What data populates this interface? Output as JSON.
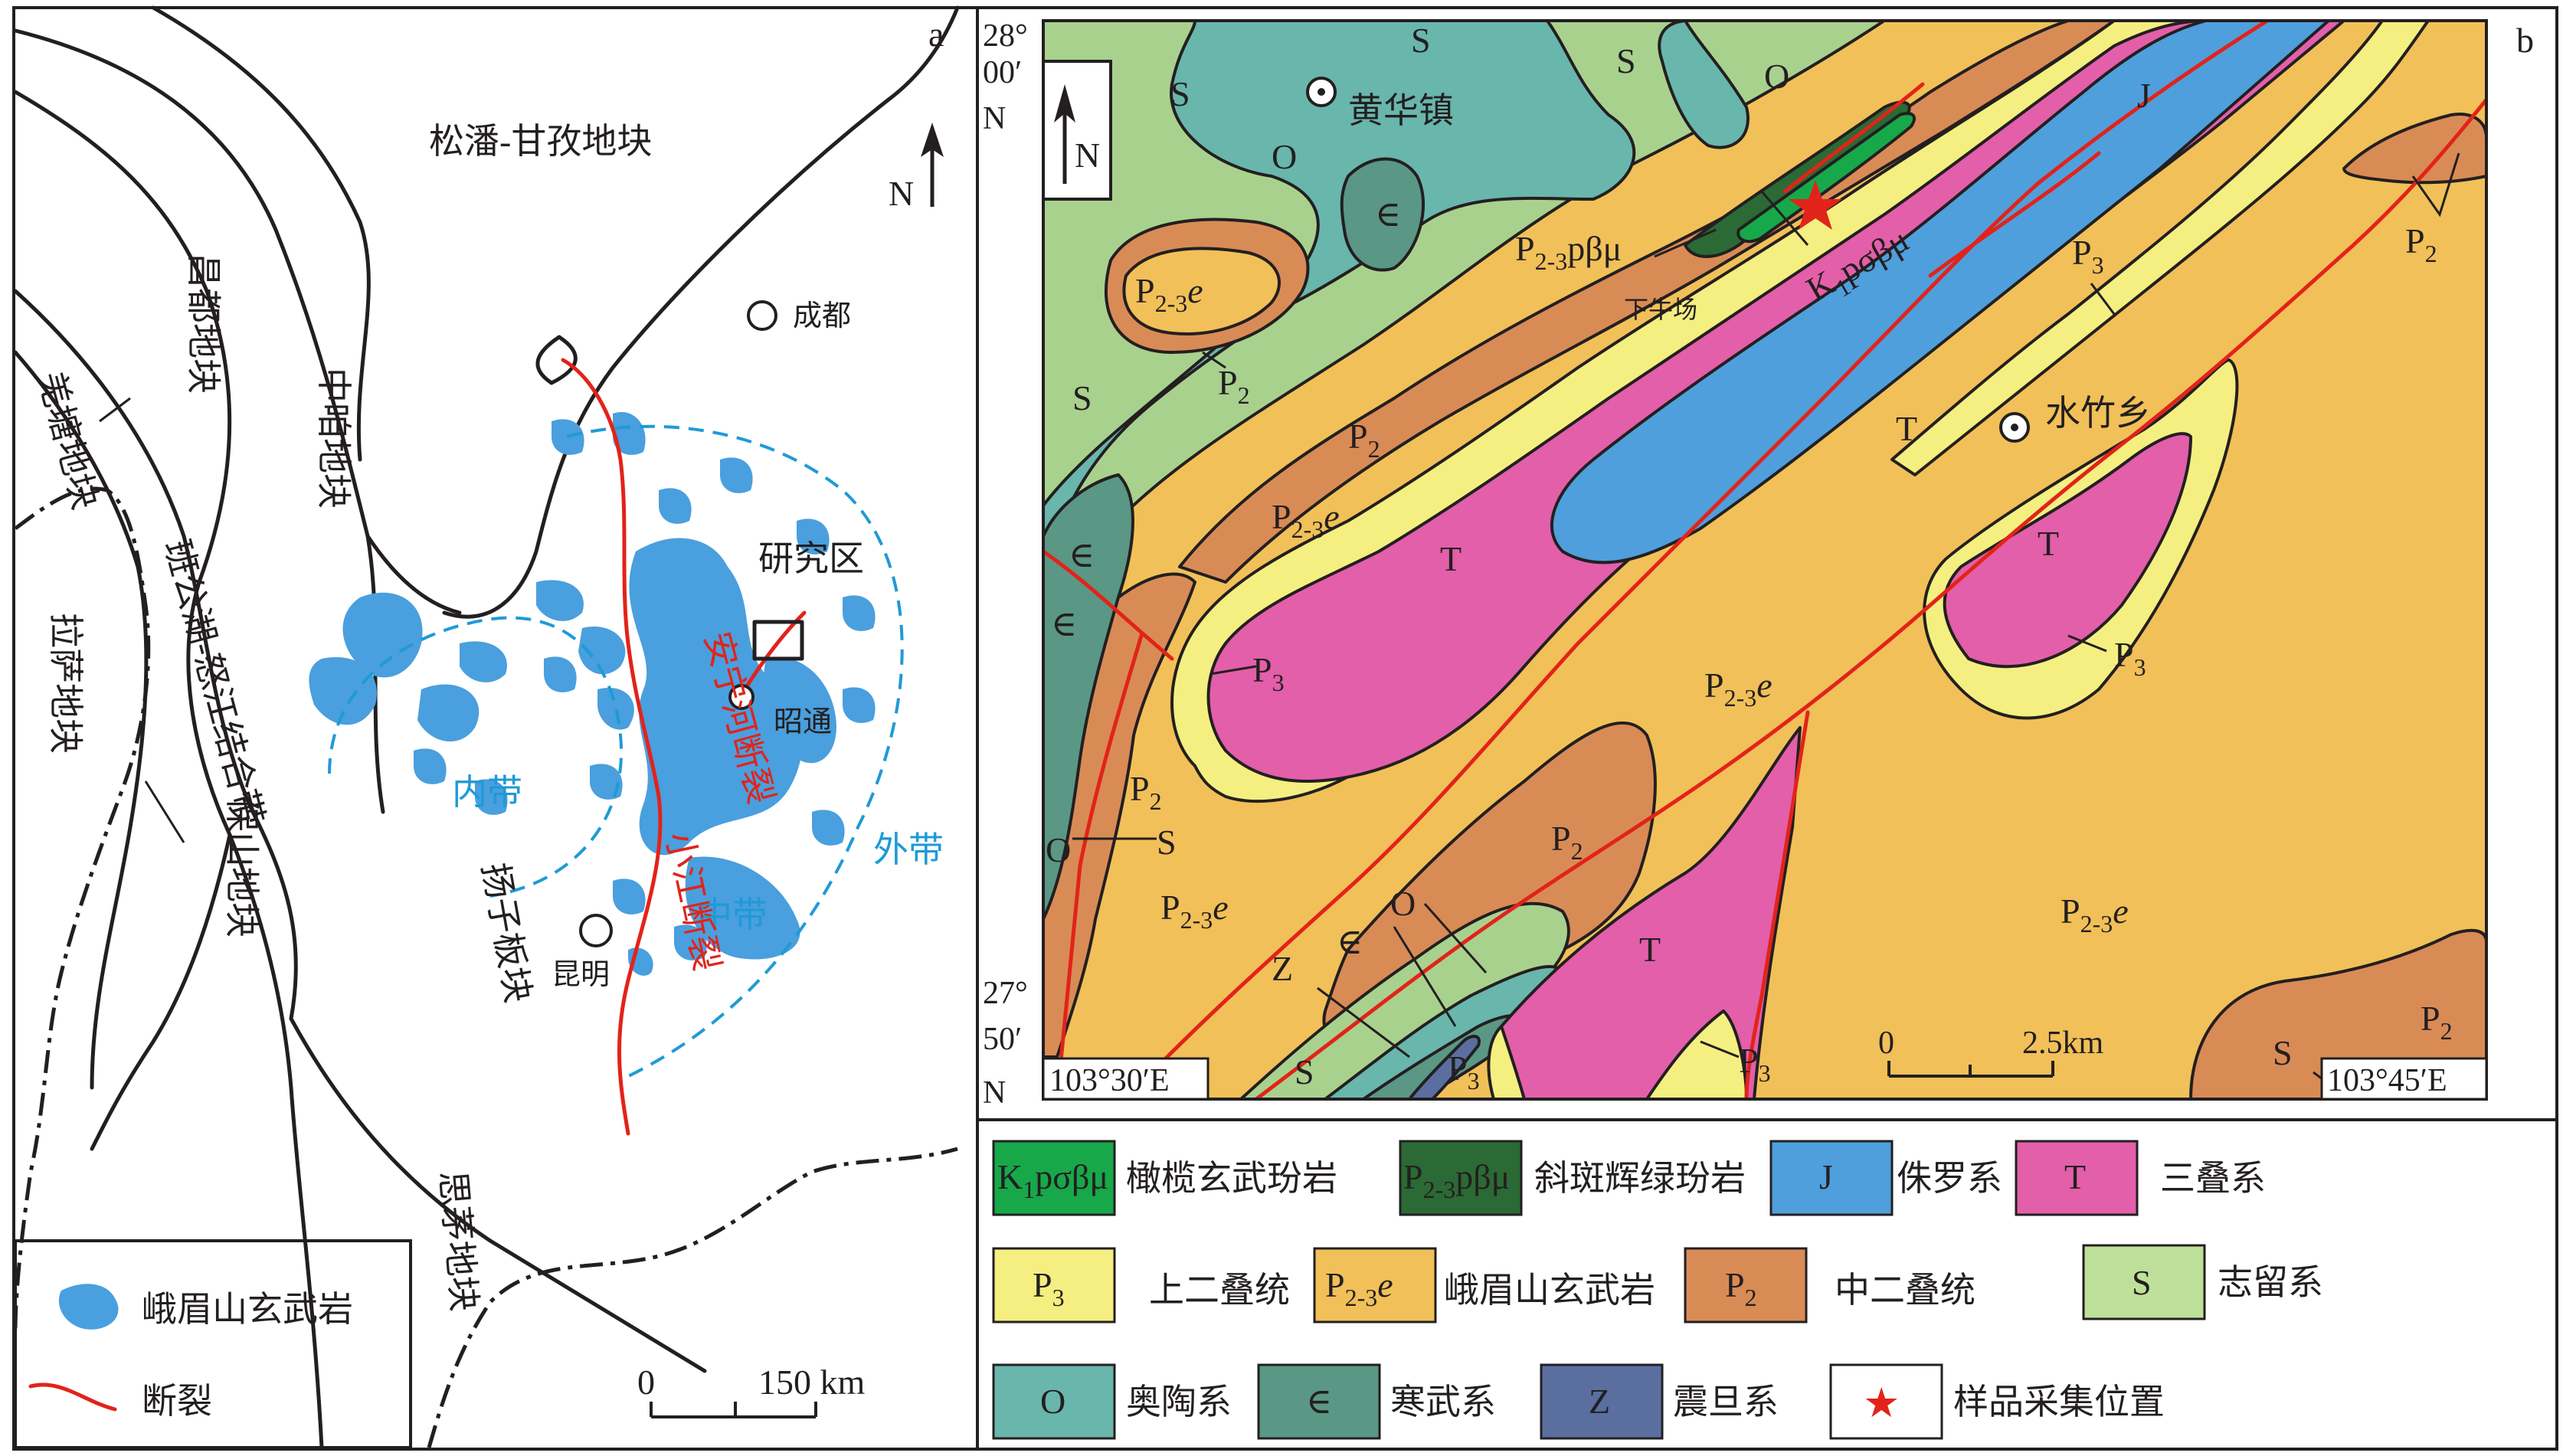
{
  "panel_a": {
    "panel_letter": "a",
    "blocks": {
      "songpan": "松潘-甘孜地块",
      "changdu": "昌都地块",
      "zhongza": "中咱地块",
      "qiangtang": "羌塘地块",
      "bangong": "班公湖-怒江结合带",
      "lasa": "拉萨地块",
      "baoshan": "保山地块",
      "yangzi": "扬子板块",
      "simao": "思茅地块"
    },
    "cities": {
      "chengdu": "成都",
      "kunming": "昆明",
      "zhaotong": "昭通"
    },
    "study_area": "研究区",
    "zones": {
      "inner": "内带",
      "middle": "中带",
      "outer": "外带"
    },
    "faults": {
      "anninghe": "安宁河断裂",
      "xiaojiang": "小江断裂"
    },
    "north": "N",
    "scale": {
      "zero": "0",
      "distance": "150 km"
    },
    "legend": {
      "basalt": "峨眉山玄武岩",
      "fault": "断裂"
    }
  },
  "panel_b": {
    "panel_letter": "b",
    "north": "N",
    "towns": {
      "huanghua": "黄华镇",
      "shuizhu": "水竹乡",
      "xianiuchang": "下牛场"
    },
    "coords": {
      "top_lat_deg": "28°",
      "top_lat_min": "00′",
      "top_lat_hem": "N",
      "bottom_lat_deg": "27°",
      "bottom_lat_min": "50′",
      "bottom_lat_hem": "N",
      "left_lon": "103°30′E",
      "right_lon": "103°45′E"
    },
    "scale": {
      "zero": "0",
      "distance": "2.5km"
    },
    "unit_labels": {
      "S": "S",
      "O": "O",
      "J": "J",
      "T": "T",
      "P2": "P",
      "P2_sub": "2",
      "P3": "P",
      "P3_sub": "3",
      "P23e": "P",
      "P23e_sub": "2-3",
      "P23e_suffix": "e",
      "Cam": "∈",
      "Z": "Z",
      "K1": "K",
      "K1_sub": "1",
      "K1_rest": "pσβμ",
      "P23pbm": "P",
      "P23pbm_sub": "2-3",
      "P23pbm_rest": "pβμ"
    }
  },
  "legend": {
    "k1": {
      "code": "K",
      "code_sub": "1",
      "code_rest": "pσβμ",
      "label": "橄榄玄武玢岩",
      "color": "#17a84a"
    },
    "p23pbm": {
      "code": "P",
      "code_sub": "2-3",
      "code_rest": "pβμ",
      "label": "斜斑辉绿玢岩",
      "color": "#2b6a34"
    },
    "j": {
      "code": "J",
      "label": "侏罗系",
      "color": "#4f9fdc"
    },
    "t": {
      "code": "T",
      "label": "三叠系",
      "color": "#e35fa9"
    },
    "p3": {
      "code": "P",
      "code_sub": "3",
      "label": "上二叠统",
      "color": "#f4ef80"
    },
    "p23e": {
      "code": "P",
      "code_sub": "2-3",
      "code_suffix": "e",
      "label": "峨眉山玄武岩",
      "color": "#f1c058"
    },
    "p2": {
      "code": "P",
      "code_sub": "2",
      "label": "中二叠统",
      "color": "#d98b56"
    },
    "s": {
      "code": "S",
      "label": "志留系",
      "color": "#bfe09a"
    },
    "o": {
      "code": "O",
      "label": "奥陶系",
      "color": "#69b6ac"
    },
    "cam": {
      "code": "∈",
      "label": "寒武系",
      "color": "#5a9784"
    },
    "z": {
      "code": "Z",
      "label": "震旦系",
      "color": "#5a6fa0"
    },
    "sample": {
      "code": "★",
      "label": "样品采集位置"
    }
  },
  "colors": {
    "basalt": "#4a9fde",
    "fault": "#e2231a",
    "zone_line": "#1f9ad6",
    "green_silurian": "#a9d18e"
  }
}
